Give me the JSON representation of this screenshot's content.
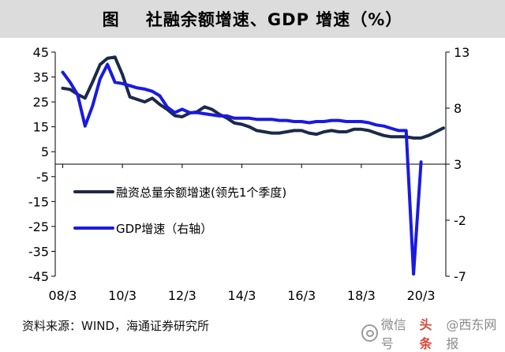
{
  "header": {
    "title": "图    社融余额增速、GDP 增速（%）"
  },
  "source": {
    "text": "资料来源：WIND，海通证券研究所"
  },
  "watermark": {
    "prefix": "微信号",
    "brand": "头条",
    "suffix": "@西东网报"
  },
  "chart_data": {
    "type": "line",
    "x_ticks": [
      "08/3",
      "10/3",
      "12/3",
      "14/3",
      "16/3",
      "18/3",
      "20/3"
    ],
    "left_axis": {
      "ylim": [
        -45,
        45
      ],
      "ticks": [
        45,
        35,
        25,
        15,
        5,
        -5,
        -15,
        -25,
        -35,
        -45
      ]
    },
    "right_axis": {
      "ylim": [
        -7,
        13
      ],
      "ticks": [
        13,
        8,
        3,
        -2,
        -7
      ]
    },
    "grid": false,
    "legend_position": "center",
    "series": [
      {
        "name": "融资总量余额增速(领先1个季度)",
        "axis": "left",
        "color": "#1b2a4a",
        "x": [
          2008.25,
          2008.5,
          2008.75,
          2009.0,
          2009.25,
          2009.5,
          2009.75,
          2010.0,
          2010.25,
          2010.5,
          2010.75,
          2011.0,
          2011.25,
          2011.5,
          2011.75,
          2012.0,
          2012.25,
          2012.5,
          2012.75,
          2013.0,
          2013.25,
          2013.5,
          2013.75,
          2014.0,
          2014.25,
          2014.5,
          2014.75,
          2015.0,
          2015.25,
          2015.5,
          2015.75,
          2016.0,
          2016.25,
          2016.5,
          2016.75,
          2017.0,
          2017.25,
          2017.5,
          2017.75,
          2018.0,
          2018.25,
          2018.5,
          2018.75,
          2019.0,
          2019.25,
          2019.5,
          2019.75,
          2020.0,
          2020.25,
          2020.5,
          2020.75,
          2021.0
        ],
        "values": [
          30.5,
          30,
          28,
          26.5,
          33,
          40,
          42.5,
          43,
          36,
          27,
          26,
          25,
          26.5,
          24,
          22,
          19.5,
          19,
          20.5,
          21,
          23,
          22,
          20,
          18.5,
          16.5,
          16,
          15,
          13.5,
          13,
          12.5,
          12.5,
          13,
          13.5,
          13.5,
          12.5,
          12,
          13,
          13.5,
          13,
          13,
          14,
          14,
          13.5,
          12.5,
          11.5,
          11,
          11,
          11,
          10.5,
          10.5,
          11.5,
          13,
          14.5
        ]
      },
      {
        "name": "GDP增速（右轴）",
        "axis": "right",
        "color": "#1a1ae0",
        "x": [
          2008.25,
          2008.5,
          2008.75,
          2009.0,
          2009.25,
          2009.5,
          2009.75,
          2010.0,
          2010.25,
          2010.5,
          2010.75,
          2011.0,
          2011.25,
          2011.5,
          2011.75,
          2012.0,
          2012.25,
          2012.5,
          2012.75,
          2013.0,
          2013.25,
          2013.5,
          2013.75,
          2014.0,
          2014.25,
          2014.5,
          2014.75,
          2015.0,
          2015.25,
          2015.5,
          2015.75,
          2016.0,
          2016.25,
          2016.5,
          2016.75,
          2017.0,
          2017.25,
          2017.5,
          2017.75,
          2018.0,
          2018.25,
          2018.5,
          2018.75,
          2019.0,
          2019.25,
          2019.5,
          2019.75,
          2020.0,
          2020.25
        ],
        "values": [
          11.2,
          10.3,
          9.2,
          6.4,
          8.2,
          10.6,
          11.9,
          10.3,
          10.2,
          10.0,
          9.8,
          9.7,
          9.5,
          9.1,
          8.1,
          7.6,
          7.9,
          7.6,
          7.6,
          7.5,
          7.4,
          7.3,
          7.3,
          7.1,
          7.1,
          7.1,
          7.0,
          7.0,
          7.0,
          6.9,
          6.9,
          6.8,
          6.8,
          6.7,
          6.8,
          6.8,
          6.9,
          6.9,
          6.8,
          6.8,
          6.8,
          6.7,
          6.5,
          6.4,
          6.2,
          6.0,
          6.0,
          -6.8,
          3.2
        ]
      }
    ]
  }
}
